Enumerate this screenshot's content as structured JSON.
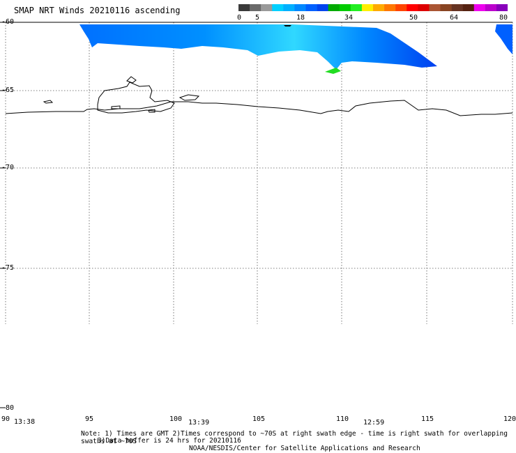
{
  "title": "SMAP NRT Winds 20210116 ascending",
  "colorbar": {
    "labels": [
      "0",
      "5",
      "18",
      "34",
      "50",
      "64",
      "80"
    ],
    "segments": [
      "#3a3a3a",
      "#6a6a6a",
      "#9a9a9a",
      "#00d0ff",
      "#00b0ff",
      "#0088ff",
      "#0060ff",
      "#0044ee",
      "#00aa00",
      "#00cc00",
      "#22ee22",
      "#ffee00",
      "#ffaa00",
      "#ff7700",
      "#ff4400",
      "#ff0000",
      "#dd0000",
      "#aa5533",
      "#884422",
      "#663322",
      "#552211",
      "#ee00ee",
      "#bb00cc",
      "#8800bb"
    ]
  },
  "map": {
    "lat_ticks": [
      "-60",
      "-65",
      "-70",
      "-75",
      "-80"
    ],
    "lon_ticks": [
      "90",
      "95",
      "100",
      "105",
      "110",
      "115",
      "120"
    ],
    "times": [
      "13:38",
      "13:39",
      "12:59"
    ],
    "swath_colors": {
      "blue_dark": "#0040f0",
      "blue": "#0070ff",
      "cyan": "#00c0ff",
      "light": "#40e0ff",
      "green": "#22dd22"
    }
  },
  "notes": {
    "line1": "Note: 1) Times are GMT 2)Times correspond to ~70S at right swath edge - time is right swath for overlapping swaths at ~70S",
    "line2": "3)Data buffer is 24 hrs for 20210116",
    "line3": "NOAA/NESDIS/Center for Satellite Applications and Research"
  }
}
